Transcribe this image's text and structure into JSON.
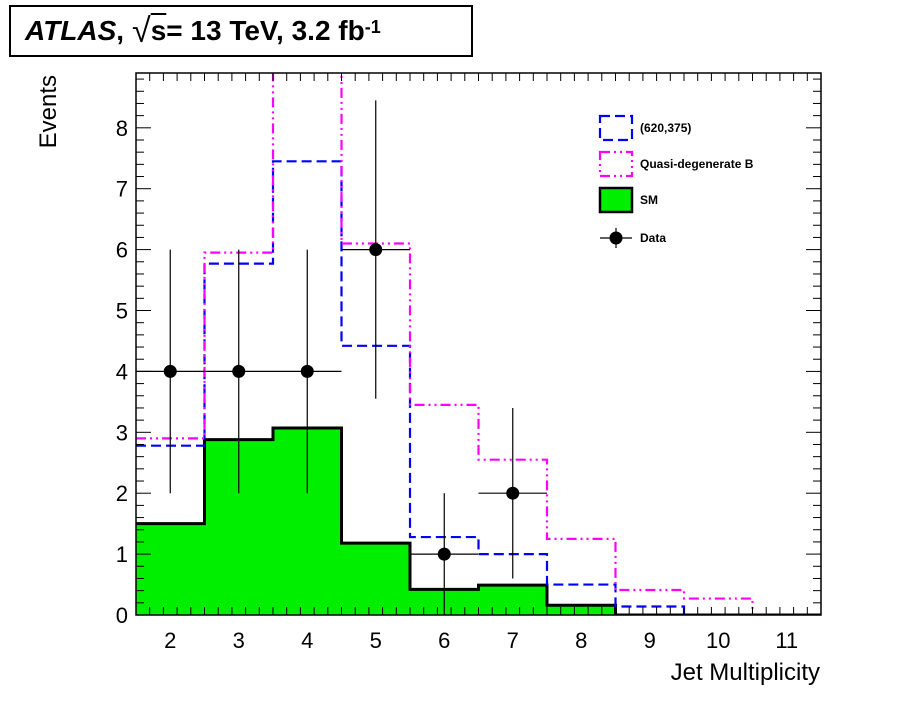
{
  "header": {
    "experiment": "ATLAS",
    "sep": ",",
    "sqrt_symbol": "√",
    "energy_var": "s",
    "energy_text": " = 13 TeV, 3.2 fb",
    "lumi_exp": "-1"
  },
  "chart_data": {
    "type": "histogram",
    "xlabel": "Jet Multiplicity",
    "ylabel": "Events",
    "xlim": [
      1.5,
      11.5
    ],
    "ylim": [
      0,
      8.9
    ],
    "x_ticks": [
      "2",
      "3",
      "4",
      "5",
      "6",
      "7",
      "8",
      "9",
      "10",
      "11"
    ],
    "y_ticks": [
      "0",
      "1",
      "2",
      "3",
      "4",
      "5",
      "6",
      "7",
      "8"
    ],
    "bin_edges": [
      1.5,
      2.5,
      3.5,
      4.5,
      5.5,
      6.5,
      7.5,
      8.5,
      9.5,
      10.5,
      11.5
    ],
    "series": [
      {
        "name": "SM",
        "style": "filled",
        "color": "#00ee00",
        "values": [
          1.5,
          2.88,
          3.07,
          1.18,
          0.42,
          0.49,
          0.16,
          0.0,
          0.0,
          0.0
        ]
      },
      {
        "name": "(620,375)",
        "style": "dashed",
        "color": "#0000ff",
        "values": [
          2.78,
          5.77,
          7.45,
          4.42,
          1.28,
          1.0,
          0.5,
          0.14,
          0.0,
          0.0
        ]
      },
      {
        "name": "Quasi-degenerate B",
        "style": "dash-dot",
        "color": "#ff00ff",
        "values": [
          2.9,
          5.95,
          9.0,
          6.1,
          3.45,
          2.55,
          1.25,
          0.41,
          0.27,
          0.0
        ]
      }
    ],
    "data_points": {
      "name": "Data",
      "x": [
        2,
        3,
        4,
        5,
        6,
        7
      ],
      "y": [
        4,
        4,
        4,
        6,
        1,
        2
      ],
      "yerr_low": [
        2.0,
        2.0,
        2.0,
        2.45,
        1.0,
        1.4
      ],
      "yerr_high": [
        2.0,
        2.0,
        2.0,
        2.45,
        1.0,
        1.4
      ]
    },
    "legend_position": "top-right"
  }
}
